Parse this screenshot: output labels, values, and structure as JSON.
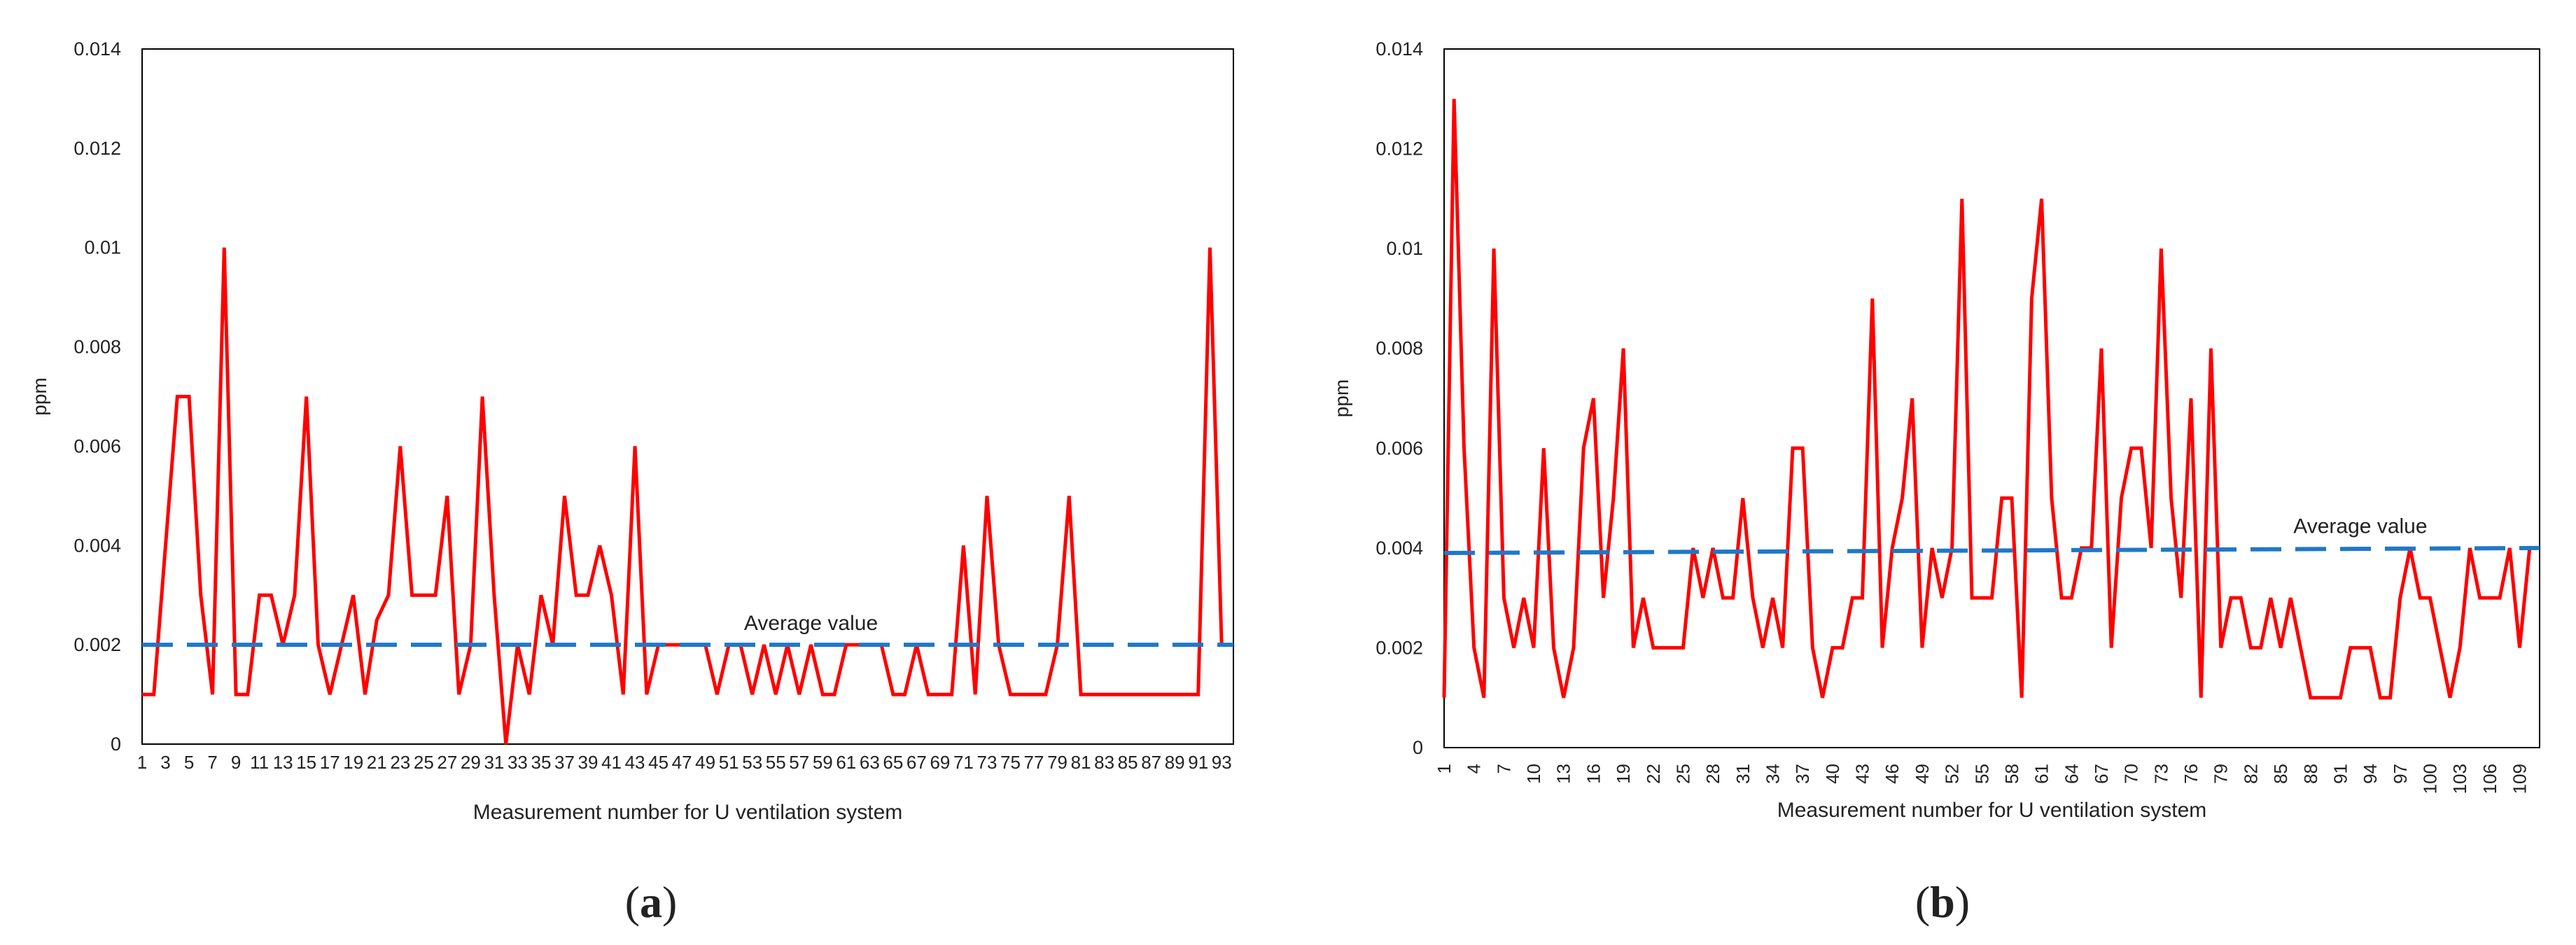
{
  "chart_data": [
    {
      "type": "line",
      "panel_label": "a",
      "ylabel": "ppm",
      "xlabel": "Measurement number for U ventilation system",
      "ylim": [
        0,
        0.014
      ],
      "yticks": [
        "0",
        "0.002",
        "0.004",
        "0.006",
        "0.008",
        "0.01",
        "0.012",
        "0.014"
      ],
      "ytick_values": [
        0,
        0.002,
        0.004,
        0.006,
        0.008,
        0.01,
        0.012,
        0.014
      ],
      "x_range": [
        1,
        94
      ],
      "xticks": [
        "1",
        "3",
        "5",
        "7",
        "9",
        "11",
        "13",
        "15",
        "17",
        "19",
        "21",
        "23",
        "25",
        "27",
        "29",
        "31",
        "33",
        "35",
        "37",
        "39",
        "41",
        "43",
        "45",
        "47",
        "49",
        "51",
        "53",
        "55",
        "57",
        "59",
        "61",
        "63",
        "65",
        "67",
        "69",
        "71",
        "73",
        "75",
        "77",
        "79",
        "81",
        "83",
        "85",
        "87",
        "89",
        "91",
        "93"
      ],
      "xtick_values": [
        1,
        3,
        5,
        7,
        9,
        11,
        13,
        15,
        17,
        19,
        21,
        23,
        25,
        27,
        29,
        31,
        33,
        35,
        37,
        39,
        41,
        43,
        45,
        47,
        49,
        51,
        53,
        55,
        57,
        59,
        61,
        63,
        65,
        67,
        69,
        71,
        73,
        75,
        77,
        79,
        81,
        83,
        85,
        87,
        89,
        91,
        93
      ],
      "grid": false,
      "series": [
        {
          "color": "#ff0000",
          "x": [
            1,
            2,
            3,
            4,
            5,
            6,
            7,
            8,
            9,
            10,
            11,
            12,
            13,
            14,
            15,
            16,
            17,
            18,
            19,
            20,
            21,
            22,
            23,
            24,
            25,
            26,
            27,
            28,
            29,
            30,
            31,
            32,
            33,
            34,
            35,
            36,
            37,
            38,
            39,
            40,
            41,
            42,
            43,
            44,
            45,
            46,
            47,
            48,
            49,
            50,
            51,
            52,
            53,
            54,
            55,
            56,
            57,
            58,
            59,
            60,
            61,
            62,
            63,
            64,
            65,
            66,
            67,
            68,
            69,
            70,
            71,
            72,
            73,
            74,
            75,
            76,
            77,
            78,
            79,
            80,
            81,
            82,
            83,
            84,
            85,
            86,
            87,
            88,
            89,
            90,
            91,
            92,
            93,
            94
          ],
          "values": [
            0.001,
            0.001,
            0.004,
            0.007,
            0.007,
            0.003,
            0.001,
            0.01,
            0.001,
            0.001,
            0.003,
            0.003,
            0.002,
            0.003,
            0.007,
            0.002,
            0.001,
            0.002,
            0.003,
            0.001,
            0.0025,
            0.003,
            0.006,
            0.003,
            0.003,
            0.003,
            0.005,
            0.001,
            0.002,
            0.007,
            0.003,
            0.0,
            0.002,
            0.001,
            0.003,
            0.002,
            0.005,
            0.003,
            0.003,
            0.004,
            0.003,
            0.001,
            0.006,
            0.001,
            0.002,
            0.002,
            0.002,
            0.002,
            0.002,
            0.001,
            0.002,
            0.002,
            0.001,
            0.002,
            0.001,
            0.002,
            0.001,
            0.002,
            0.001,
            0.001,
            0.002,
            0.002,
            0.002,
            0.002,
            0.001,
            0.001,
            0.002,
            0.001,
            0.001,
            0.001,
            0.004,
            0.001,
            0.005,
            0.002,
            0.001,
            0.001,
            0.001,
            0.001,
            0.002,
            0.005,
            0.001,
            0.001,
            0.001,
            0.001,
            0.001,
            0.001,
            0.001,
            0.001,
            0.001,
            0.001,
            0.001,
            0.01,
            0.002,
            0.002
          ]
        },
        {
          "color": "#1f78c8",
          "dashed": true,
          "x": [
            1,
            94
          ],
          "values": [
            0.002,
            0.002
          ]
        }
      ],
      "annotations": [
        {
          "text": "Average value",
          "x": 58,
          "y": 0.0023
        }
      ]
    },
    {
      "type": "line",
      "panel_label": "b",
      "ylabel": "ppm",
      "xlabel": "Measurement number for U ventilation system",
      "ylim": [
        0,
        0.014
      ],
      "yticks": [
        "0",
        "0.002",
        "0.004",
        "0.006",
        "0.008",
        "0.01",
        "0.012",
        "0.014"
      ],
      "ytick_values": [
        0,
        0.002,
        0.004,
        0.006,
        0.008,
        0.01,
        0.012,
        0.014
      ],
      "x_range": [
        1,
        111
      ],
      "xticks": [
        "1",
        "4",
        "7",
        "10",
        "13",
        "16",
        "19",
        "22",
        "25",
        "28",
        "31",
        "34",
        "37",
        "40",
        "43",
        "46",
        "49",
        "52",
        "55",
        "58",
        "61",
        "64",
        "67",
        "70",
        "73",
        "76",
        "79",
        "82",
        "85",
        "88",
        "91",
        "94",
        "97",
        "100",
        "103",
        "106",
        "109"
      ],
      "xtick_values": [
        1,
        4,
        7,
        10,
        13,
        16,
        19,
        22,
        25,
        28,
        31,
        34,
        37,
        40,
        43,
        46,
        49,
        52,
        55,
        58,
        61,
        64,
        67,
        70,
        73,
        76,
        79,
        82,
        85,
        88,
        91,
        94,
        97,
        100,
        103,
        106,
        109
      ],
      "grid": false,
      "series": [
        {
          "color": "#ff0000",
          "x": [
            1,
            2,
            3,
            4,
            5,
            6,
            7,
            8,
            9,
            10,
            11,
            12,
            13,
            14,
            15,
            16,
            17,
            18,
            19,
            20,
            21,
            22,
            23,
            24,
            25,
            26,
            27,
            28,
            29,
            30,
            31,
            32,
            33,
            34,
            35,
            36,
            37,
            38,
            39,
            40,
            41,
            42,
            43,
            44,
            45,
            46,
            47,
            48,
            49,
            50,
            51,
            52,
            53,
            54,
            55,
            56,
            57,
            58,
            59,
            60,
            61,
            62,
            63,
            64,
            65,
            66,
            67,
            68,
            69,
            70,
            71,
            72,
            73,
            74,
            75,
            76,
            77,
            78,
            79,
            80,
            81,
            82,
            83,
            84,
            85,
            86,
            87,
            88,
            89,
            90,
            91,
            92,
            93,
            94,
            95,
            96,
            97,
            98,
            99,
            100,
            101,
            102,
            103,
            104,
            105,
            106,
            107,
            108,
            109,
            110,
            111
          ],
          "values": [
            0.001,
            0.013,
            0.006,
            0.002,
            0.001,
            0.01,
            0.003,
            0.002,
            0.003,
            0.002,
            0.006,
            0.002,
            0.001,
            0.002,
            0.006,
            0.007,
            0.003,
            0.005,
            0.008,
            0.002,
            0.003,
            0.002,
            0.002,
            0.002,
            0.002,
            0.004,
            0.003,
            0.004,
            0.003,
            0.003,
            0.005,
            0.003,
            0.002,
            0.003,
            0.002,
            0.006,
            0.006,
            0.002,
            0.001,
            0.002,
            0.002,
            0.003,
            0.003,
            0.009,
            0.002,
            0.004,
            0.005,
            0.007,
            0.002,
            0.004,
            0.003,
            0.004,
            0.011,
            0.003,
            0.003,
            0.003,
            0.005,
            0.005,
            0.001,
            0.009,
            0.011,
            0.005,
            0.003,
            0.003,
            0.004,
            0.004,
            0.008,
            0.002,
            0.005,
            0.006,
            0.006,
            0.004,
            0.01,
            0.005,
            0.003,
            0.007,
            0.001,
            0.008,
            0.002,
            0.003,
            0.003,
            0.002,
            0.002,
            0.003,
            0.002,
            0.003,
            0.002,
            0.001,
            0.001,
            0.001,
            0.001,
            0.002,
            0.002,
            0.002,
            0.001,
            0.001,
            0.003,
            0.004,
            0.003,
            0.003,
            0.002,
            0.001,
            0.002,
            0.004,
            0.003,
            0.003,
            0.003,
            0.004,
            0.002,
            0.004,
            0.004
          ]
        },
        {
          "color": "#1f78c8",
          "dashed": true,
          "x": [
            1,
            111
          ],
          "values": [
            0.0039,
            0.004
          ]
        }
      ],
      "annotations": [
        {
          "text": "Average value",
          "x": 93,
          "y": 0.0043
        }
      ]
    }
  ]
}
